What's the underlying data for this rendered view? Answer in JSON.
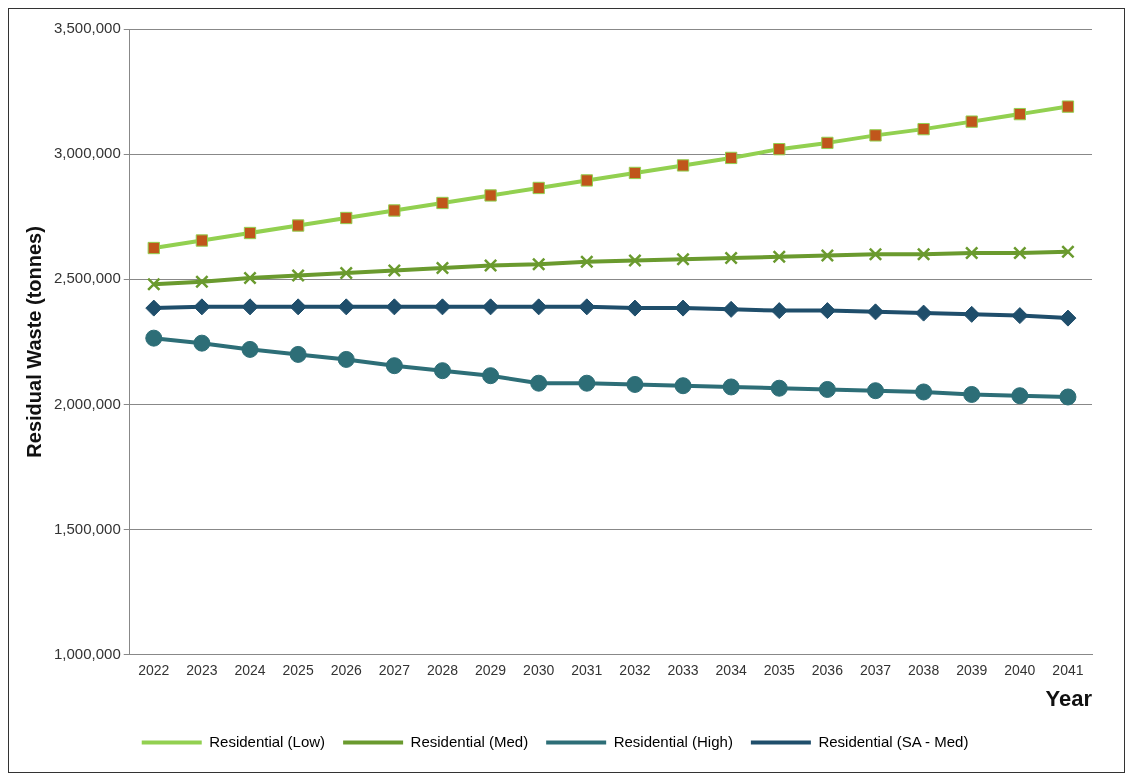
{
  "chart_data": {
    "type": "line",
    "xlabel": "Year",
    "ylabel": "Residual Waste (tonnes)",
    "categories": [
      "2022",
      "2023",
      "2024",
      "2025",
      "2026",
      "2027",
      "2028",
      "2029",
      "2030",
      "2031",
      "2032",
      "2033",
      "2034",
      "2035",
      "2036",
      "2037",
      "2038",
      "2039",
      "2040",
      "2041"
    ],
    "ylim": [
      1000000,
      3500000
    ],
    "yticks": [
      {
        "value": 1000000,
        "label": "1,000,000"
      },
      {
        "value": 1500000,
        "label": "1,500,000"
      },
      {
        "value": 2000000,
        "label": "2,000,000"
      },
      {
        "value": 2500000,
        "label": "2,500,000"
      },
      {
        "value": 3000000,
        "label": "3,000,000"
      },
      {
        "value": 3500000,
        "label": "3,500,000"
      }
    ],
    "grid": "y",
    "legend": "bottom",
    "series": [
      {
        "name": "Residential (Low)",
        "color": "#92d050",
        "marker": "square",
        "colors": [
          "#c0561b",
          "#c0561b",
          "#c0561b",
          "#c0561b",
          "#c0561b",
          "#c0561b",
          "#c0561b",
          "#c0561b",
          "#c0561b",
          "#c0561b",
          "#c0561b",
          "#c0561b",
          "#c0561b",
          "#c0561b",
          "#c0561b",
          "#c0561b",
          "#c0561b",
          "#c0561b",
          "#c0561b",
          "#c0561b"
        ],
        "values": [
          2625000,
          2655000,
          2685000,
          2715000,
          2745000,
          2775000,
          2805000,
          2835000,
          2865000,
          2895000,
          2925000,
          2955000,
          2985000,
          3020000,
          3045000,
          3075000,
          3100000,
          3130000,
          3160000,
          3190000
        ]
      },
      {
        "name": "Residential (Med)",
        "color": "#6a9a2e",
        "marker": "cross",
        "values": [
          2480000,
          2490000,
          2505000,
          2515000,
          2525000,
          2535000,
          2545000,
          2555000,
          2560000,
          2570000,
          2575000,
          2580000,
          2585000,
          2590000,
          2595000,
          2600000,
          2600000,
          2605000,
          2605000,
          2610000
        ]
      },
      {
        "name": "Residential (High)",
        "color": "#2d6e77",
        "marker": "circle",
        "values": [
          2265000,
          2245000,
          2220000,
          2200000,
          2180000,
          2155000,
          2135000,
          2115000,
          2085000,
          2085000,
          2080000,
          2075000,
          2070000,
          2065000,
          2060000,
          2055000,
          2050000,
          2040000,
          2035000,
          2030000
        ]
      },
      {
        "name": "Residential (SA - Med)",
        "color": "#1f4e6b",
        "marker": "diamond",
        "values": [
          2385000,
          2390000,
          2390000,
          2390000,
          2390000,
          2390000,
          2390000,
          2390000,
          2390000,
          2390000,
          2385000,
          2385000,
          2380000,
          2375000,
          2375000,
          2370000,
          2365000,
          2360000,
          2355000,
          2345000
        ]
      }
    ]
  }
}
